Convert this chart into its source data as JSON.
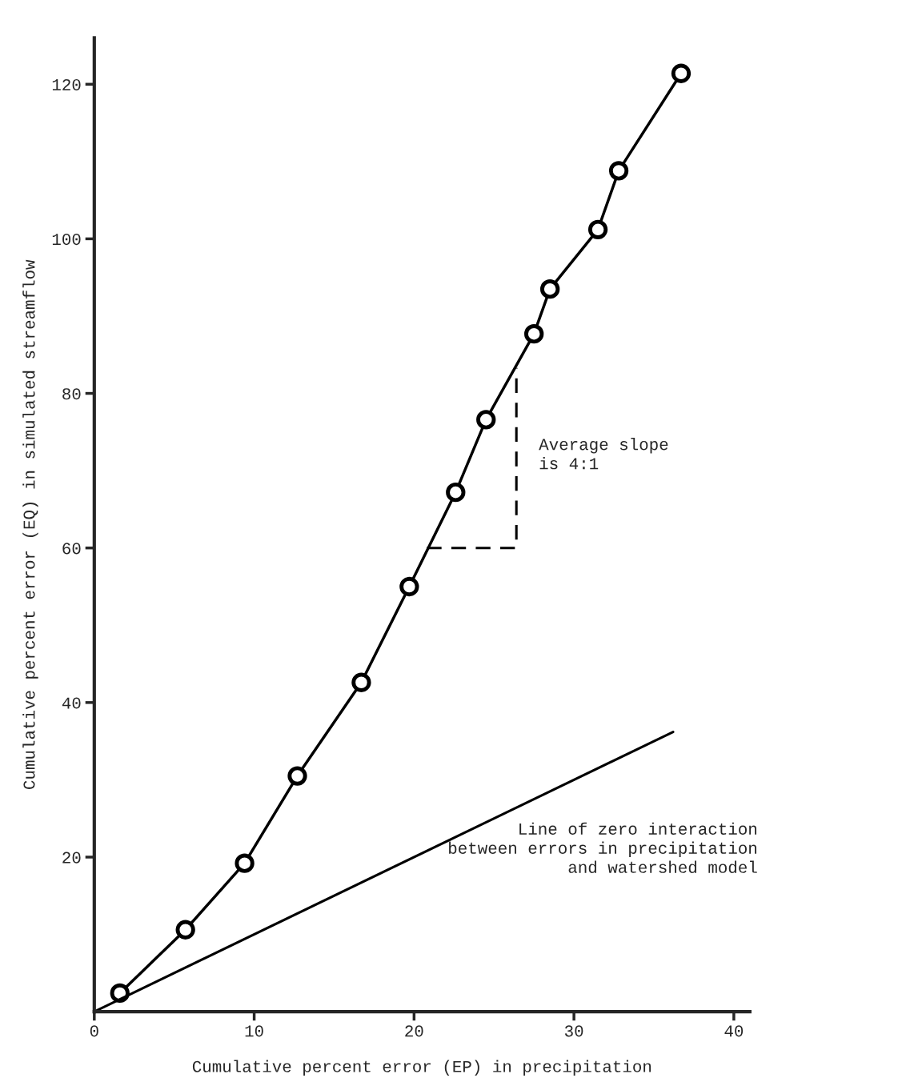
{
  "chart_data": {
    "type": "line",
    "xlabel": "Cumulative percent error (EP) in precipitation",
    "ylabel": "Cumulative percent error (EQ) in simulated streamflow",
    "xlim": [
      0,
      41
    ],
    "ylim": [
      0,
      126
    ],
    "xticks": [
      0,
      10,
      20,
      30,
      40
    ],
    "yticks": [
      20,
      40,
      60,
      80,
      100,
      120
    ],
    "grid": false,
    "legend": false,
    "series": [
      {
        "marker": "circle",
        "line_style": "solid",
        "color": "#000000",
        "x": [
          1.6,
          5.7,
          9.4,
          12.7,
          16.7,
          19.7,
          22.6,
          24.5,
          27.5,
          28.5,
          31.5,
          32.8,
          36.7
        ],
        "values": [
          2.4,
          10.6,
          19.2,
          30.5,
          42.6,
          55,
          67.2,
          76.6,
          87.7,
          93.5,
          101.2,
          108.8,
          121.4
        ]
      },
      {
        "marker": "none",
        "line_style": "solid",
        "color": "#000000",
        "x": [
          0,
          36.2
        ],
        "values": [
          0,
          36.2
        ]
      },
      {
        "marker": "none",
        "line_style": "dashed",
        "color": "#000000",
        "x": [
          20.8,
          26.4,
          26.4
        ],
        "values": [
          60,
          60,
          83.3
        ]
      }
    ],
    "annotations": [
      "Average slope\nis 4:1",
      "Line of zero interaction\nbetween errors in precipitation\nand watershed model"
    ]
  }
}
